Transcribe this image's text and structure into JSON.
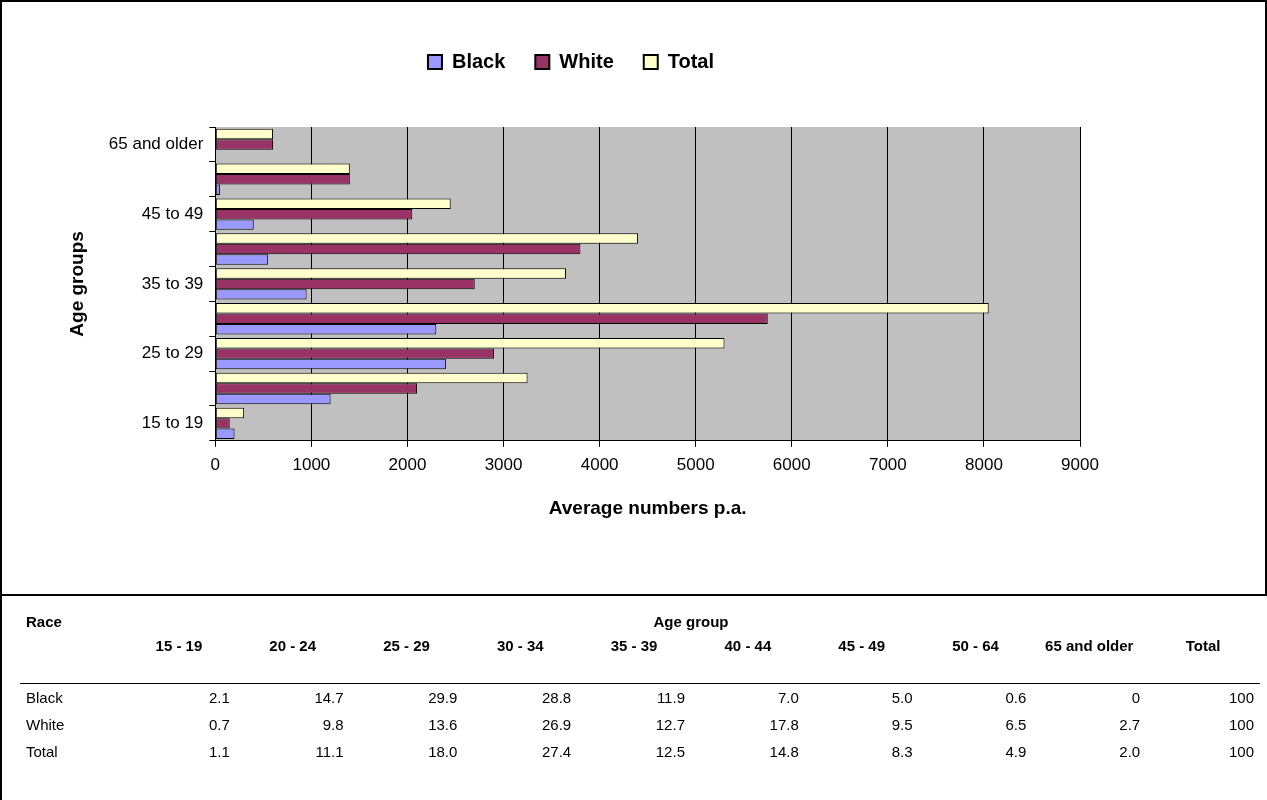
{
  "chart_data": [
    {
      "type": "bar",
      "orientation": "horizontal",
      "categories": [
        "65 and older",
        null,
        "45 to 49",
        null,
        "35 to 39",
        null,
        "25 to 29",
        null,
        "15 to 19"
      ],
      "series": [
        {
          "name": "Black",
          "color": "#9999ff",
          "values": [
            0,
            50,
            400,
            550,
            950,
            2300,
            2400,
            1200,
            200
          ]
        },
        {
          "name": "White",
          "color": "#993366",
          "values": [
            600,
            1400,
            2050,
            3800,
            2700,
            5750,
            2900,
            2100,
            150
          ]
        },
        {
          "name": "Total",
          "color": "#ffffcc",
          "values": [
            600,
            1400,
            2450,
            4400,
            3650,
            8050,
            5300,
            3250,
            300
          ]
        }
      ],
      "xlim": [
        0,
        9000
      ],
      "xticks": [
        0,
        1000,
        2000,
        3000,
        4000,
        5000,
        6000,
        7000,
        8000,
        9000
      ],
      "xlabel": "Average numbers p.a.",
      "ylabel": "Age groups",
      "grid": "x",
      "legend": "top"
    },
    {
      "type": "heatmap",
      "xlabel": "Age group",
      "ylabel": "Race",
      "categories": [
        "15 - 19",
        "20 - 24",
        "25 - 29",
        "30 - 34",
        "35 - 39",
        "40 - 44",
        "45 - 49",
        "50 - 64",
        "65 and older",
        "Total"
      ],
      "y_categories": [
        "Black",
        "White",
        "Total"
      ],
      "cells": [
        [
          2.1,
          14.7,
          29.9,
          28.8,
          11.9,
          7.0,
          5.0,
          0.6,
          0,
          100
        ],
        [
          0.7,
          9.8,
          13.6,
          26.9,
          12.7,
          17.8,
          9.5,
          6.5,
          2.7,
          100
        ],
        [
          1.1,
          11.1,
          18.0,
          27.4,
          12.5,
          14.8,
          8.3,
          4.9,
          2.0,
          100
        ]
      ],
      "cell_labels": [
        [
          "2.1",
          "14.7",
          "29.9",
          "28.8",
          "11.9",
          "7.0",
          "5.0",
          "0.6",
          "0",
          "100"
        ],
        [
          "0.7",
          "9.8",
          "13.6",
          "26.9",
          "12.7",
          "17.8",
          "9.5",
          "6.5",
          "2.7",
          "100"
        ],
        [
          "1.1",
          "11.1",
          "18.0",
          "27.4",
          "12.5",
          "14.8",
          "8.3",
          "4.9",
          "2.0",
          "100"
        ]
      ]
    }
  ]
}
